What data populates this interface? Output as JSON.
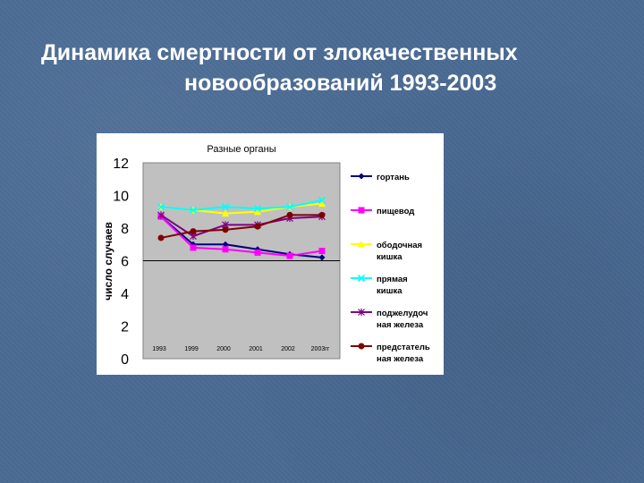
{
  "slide": {
    "title_line1": "Динамика смертности от злокачественных",
    "title_line2": "новообразований 1993-2003"
  },
  "chart_data": {
    "type": "line",
    "title": "Разные органы",
    "ylabel": "число случаев",
    "xlabel": "",
    "categories": [
      "1993",
      "1999",
      "2000",
      "2001",
      "2002",
      "2003гг"
    ],
    "ylim": [
      0,
      12
    ],
    "yticks": [
      "0",
      "2",
      "4",
      "6",
      "8",
      "10",
      "12"
    ],
    "reference_line": 6,
    "grid": false,
    "legend_position": "right",
    "series": [
      {
        "name": "гортань",
        "values": [
          8.7,
          7.0,
          7.0,
          6.7,
          6.4,
          6.2
        ],
        "color": "#000080",
        "marker": "diamond"
      },
      {
        "name": "пищевод",
        "values": [
          8.7,
          6.8,
          6.7,
          6.5,
          6.3,
          6.6
        ],
        "color": "#ff00ff",
        "marker": "square"
      },
      {
        "name": "ободочная кишка",
        "values": [
          9.3,
          9.1,
          8.9,
          9.0,
          9.3,
          9.5
        ],
        "color": "#ffff00",
        "marker": "triangle"
      },
      {
        "name": "прямая кишка",
        "values": [
          9.3,
          9.1,
          9.3,
          9.2,
          9.3,
          9.7
        ],
        "color": "#00ffff",
        "marker": "x"
      },
      {
        "name": "поджелудочная железа",
        "values": [
          8.8,
          7.5,
          8.2,
          8.2,
          8.6,
          8.7
        ],
        "color": "#800080",
        "marker": "asterisk"
      },
      {
        "name": "предстательная железа",
        "values": [
          7.4,
          7.8,
          7.9,
          8.1,
          8.8,
          8.8
        ],
        "color": "#800000",
        "marker": "circle"
      }
    ],
    "legend_labels": [
      [
        "гортань"
      ],
      [
        "пищевод"
      ],
      [
        "ободочная",
        "кишка"
      ],
      [
        "прямая",
        "кишка"
      ],
      [
        "поджелудоч",
        "ная железа"
      ],
      [
        "предстатель",
        "ная железа"
      ]
    ]
  }
}
